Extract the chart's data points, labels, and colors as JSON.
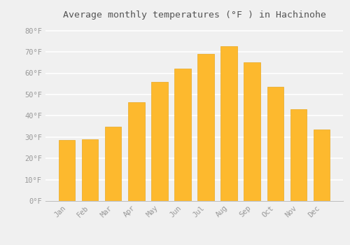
{
  "title": "Average monthly temperatures (°F ) in Hachinohe",
  "months": [
    "Jan",
    "Feb",
    "Mar",
    "Apr",
    "May",
    "Jun",
    "Jul",
    "Aug",
    "Sep",
    "Oct",
    "Nov",
    "Dec"
  ],
  "values": [
    28.5,
    29.0,
    35.0,
    46.5,
    56.0,
    62.0,
    69.0,
    72.5,
    65.0,
    53.5,
    43.0,
    33.5
  ],
  "bar_color": "#FDB92E",
  "bar_edge_color": "#E8A820",
  "background_color": "#F0F0F0",
  "grid_color": "#FFFFFF",
  "tick_label_color": "#999999",
  "title_color": "#555555",
  "yticks": [
    0,
    10,
    20,
    30,
    40,
    50,
    60,
    70,
    80
  ],
  "ylim": [
    0,
    84
  ]
}
